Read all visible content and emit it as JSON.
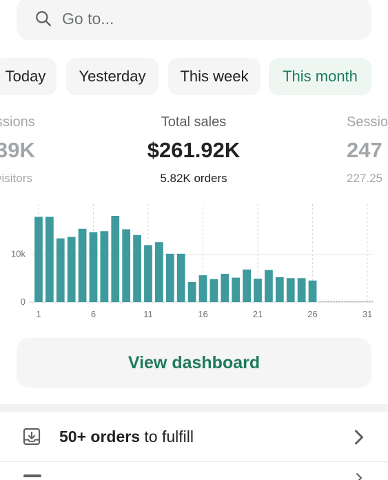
{
  "search": {
    "placeholder": "Go to..."
  },
  "filters": [
    {
      "label": "Today",
      "active": false
    },
    {
      "label": "Yesterday",
      "active": false
    },
    {
      "label": "This week",
      "active": false
    },
    {
      "label": "This month",
      "active": true
    }
  ],
  "metrics": {
    "left": {
      "label": "ssions",
      "value": "39K",
      "sub": "visitors"
    },
    "center": {
      "label": "Total sales",
      "value": "$261.92K",
      "sub": "5.82K orders"
    },
    "right": {
      "label": "Sessio",
      "value": "247",
      "sub": "227.25"
    }
  },
  "chart_data": {
    "type": "bar",
    "x": [
      1,
      2,
      3,
      4,
      5,
      6,
      7,
      8,
      9,
      10,
      11,
      12,
      13,
      14,
      15,
      16,
      17,
      18,
      19,
      20,
      21,
      22,
      23,
      24,
      25,
      26
    ],
    "values": [
      17800,
      17800,
      13300,
      13600,
      15300,
      14600,
      14800,
      18000,
      15200,
      14000,
      11900,
      12500,
      10100,
      10100,
      4200,
      5600,
      4800,
      5900,
      5100,
      6800,
      4900,
      6700,
      5200,
      5000,
      5000,
      4500
    ],
    "xticks": [
      "1",
      "6",
      "11",
      "16",
      "21",
      "26",
      "31"
    ],
    "yticks": [
      "0",
      "10k"
    ],
    "xlim": [
      1,
      31
    ],
    "ylim": [
      0,
      18000
    ],
    "color": "#3f9a9d",
    "grid": "vertical dashed, horizontal at 10k",
    "comparison_baseline": "dotted line at 0 for days 27-31"
  },
  "dashboard": {
    "label": "View dashboard"
  },
  "tasks": [
    {
      "bold": "50+ orders",
      "rest": " to fulfill",
      "icon": "download-tray-icon"
    }
  ],
  "colors": {
    "accent": "#1f7a5c",
    "bar": "#3f9a9d",
    "surface": "#f4f5f4"
  }
}
